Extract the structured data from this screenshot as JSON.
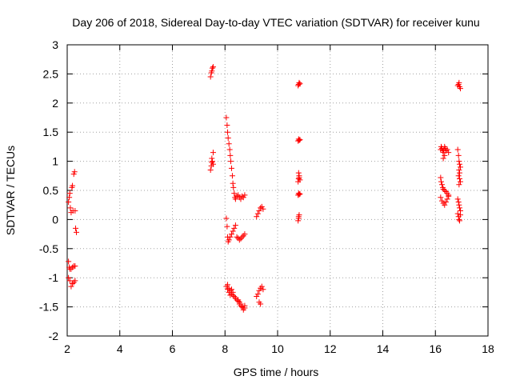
{
  "chart_data": {
    "type": "scatter",
    "title": "Day 206 of 2018, Sidereal Day-to-day VTEC variation (SDTVAR) for receiver kunu",
    "xlabel": "GPS time / hours",
    "ylabel": "SDTVAR / TECUs",
    "xlim": [
      2,
      18
    ],
    "ylim": [
      -2,
      3
    ],
    "xticks": [
      2,
      4,
      6,
      8,
      10,
      12,
      14,
      16,
      18
    ],
    "yticks": [
      -2,
      -1.5,
      -1,
      -0.5,
      0,
      0.5,
      1,
      1.5,
      2,
      2.5,
      3
    ],
    "ytick_labels": [
      "-2",
      "-1.5",
      "-1",
      "-0.5",
      "0",
      "0.5",
      "1",
      "1.5",
      "2",
      "2.5",
      "3"
    ],
    "grid": true,
    "marker": "+",
    "series": [
      {
        "name": "SDTVAR",
        "color": "#ff0000",
        "x": [
          2.05,
          2.08,
          2.1,
          2.12,
          2.15,
          2.18,
          2.2,
          2.22,
          2.25,
          2.28,
          2.3,
          2.32,
          2.35,
          2.05,
          2.08,
          2.1,
          2.15,
          2.2,
          2.25,
          2.3,
          2.05,
          2.1,
          2.15,
          2.2,
          2.25,
          2.3,
          7.45,
          7.48,
          7.5,
          7.52,
          7.55,
          7.45,
          7.48,
          7.5,
          7.5,
          7.52,
          7.55,
          7.55,
          8.05,
          8.08,
          8.1,
          8.12,
          8.15,
          8.18,
          8.2,
          8.22,
          8.25,
          8.28,
          8.3,
          8.32,
          8.35,
          8.38,
          8.4,
          8.45,
          8.5,
          8.55,
          8.6,
          8.65,
          8.7,
          8.75,
          8.05,
          8.08,
          8.1,
          8.12,
          8.15,
          8.2,
          8.25,
          8.3,
          8.35,
          8.4,
          8.45,
          8.5,
          8.55,
          8.6,
          8.65,
          8.7,
          8.75,
          8.1,
          8.15,
          8.2,
          8.25,
          8.3,
          8.35,
          8.4,
          8.45,
          8.5,
          8.55,
          8.6,
          8.65,
          8.7,
          8.75,
          8.05,
          8.1,
          8.15,
          8.2,
          8.25,
          8.3,
          8.4,
          8.5,
          8.55,
          8.6,
          8.65,
          8.7,
          8.75,
          9.2,
          9.25,
          9.3,
          9.35,
          9.4,
          9.45,
          9.2,
          9.25,
          9.3,
          9.35,
          9.4,
          9.45,
          9.3,
          9.35,
          10.78,
          10.8,
          10.82,
          10.85,
          10.78,
          10.8,
          10.82,
          10.85,
          10.78,
          10.8,
          10.82,
          10.85,
          10.78,
          10.8,
          10.82,
          10.85,
          10.8,
          10.82,
          10.78,
          10.8,
          10.82,
          10.8,
          16.2,
          16.22,
          16.25,
          16.28,
          16.3,
          16.32,
          16.35,
          16.38,
          16.4,
          16.45,
          16.5,
          16.2,
          16.22,
          16.25,
          16.28,
          16.3,
          16.35,
          16.4,
          16.45,
          16.5,
          16.2,
          16.25,
          16.3,
          16.35,
          16.4,
          16.45,
          16.5,
          16.3,
          16.35,
          16.85,
          16.88,
          16.9,
          16.92,
          16.95,
          16.85,
          16.88,
          16.9,
          16.92,
          16.95,
          16.85,
          16.88,
          16.9,
          16.92,
          16.95,
          16.9,
          16.92,
          16.85,
          16.88,
          16.9,
          16.92,
          16.95,
          16.9,
          16.88,
          16.92,
          16.95
        ],
        "y": [
          0.3,
          0.38,
          0.45,
          0.2,
          0.12,
          0.55,
          0.58,
          0.15,
          0.78,
          0.82,
          0.15,
          -0.15,
          -0.22,
          -0.72,
          -0.82,
          -0.85,
          -0.85,
          -0.82,
          -0.8,
          -0.8,
          -1.0,
          -1.05,
          -1.15,
          -1.1,
          -1.08,
          -1.05,
          2.45,
          2.52,
          2.55,
          2.6,
          2.62,
          0.85,
          0.92,
          0.98,
          1.05,
          1.0,
          0.95,
          1.15,
          1.75,
          1.62,
          1.5,
          1.4,
          1.3,
          1.2,
          1.1,
          1.0,
          0.88,
          0.75,
          0.62,
          0.55,
          0.45,
          0.38,
          0.35,
          0.4,
          0.42,
          0.38,
          0.35,
          0.4,
          0.38,
          0.42,
          0.02,
          -0.12,
          -0.3,
          -0.38,
          -0.35,
          -0.3,
          -0.25,
          -0.2,
          -0.15,
          -0.1,
          -0.3,
          -0.32,
          -0.35,
          -0.33,
          -0.3,
          -0.28,
          -0.25,
          -1.12,
          -1.18,
          -1.22,
          -1.28,
          -1.3,
          -1.32,
          -1.35,
          -1.38,
          -1.4,
          -1.45,
          -1.48,
          -1.5,
          -1.55,
          -1.52,
          -1.15,
          -1.2,
          -1.25,
          -1.3,
          -1.2,
          -1.25,
          -1.35,
          -1.38,
          -1.42,
          -1.45,
          -1.5,
          -1.52,
          -1.48,
          0.05,
          0.1,
          0.15,
          0.2,
          0.22,
          0.18,
          -1.32,
          -1.28,
          -1.22,
          -1.18,
          -1.15,
          -1.2,
          -1.42,
          -1.45,
          2.3,
          2.32,
          2.35,
          2.33,
          1.35,
          1.38,
          1.36,
          1.37,
          0.65,
          0.7,
          0.72,
          0.68,
          0.42,
          0.45,
          0.43,
          0.44,
          0.05,
          0.08,
          -0.02,
          0.8,
          0.75,
          0.02,
          1.2,
          1.25,
          1.22,
          1.18,
          1.15,
          1.2,
          1.25,
          1.22,
          1.18,
          1.2,
          1.15,
          0.72,
          0.65,
          0.6,
          0.55,
          0.52,
          0.5,
          0.48,
          0.45,
          0.42,
          0.38,
          0.32,
          0.28,
          0.25,
          0.3,
          0.35,
          0.4,
          1.05,
          1.1,
          2.3,
          2.32,
          2.35,
          2.28,
          2.25,
          1.2,
          1.1,
          1.0,
          0.95,
          0.9,
          0.35,
          0.3,
          0.25,
          0.2,
          0.15,
          0.85,
          0.8,
          0.1,
          0.05,
          0.0,
          -0.02,
          0.08,
          0.6,
          0.75,
          0.7,
          0.65
        ]
      }
    ]
  }
}
